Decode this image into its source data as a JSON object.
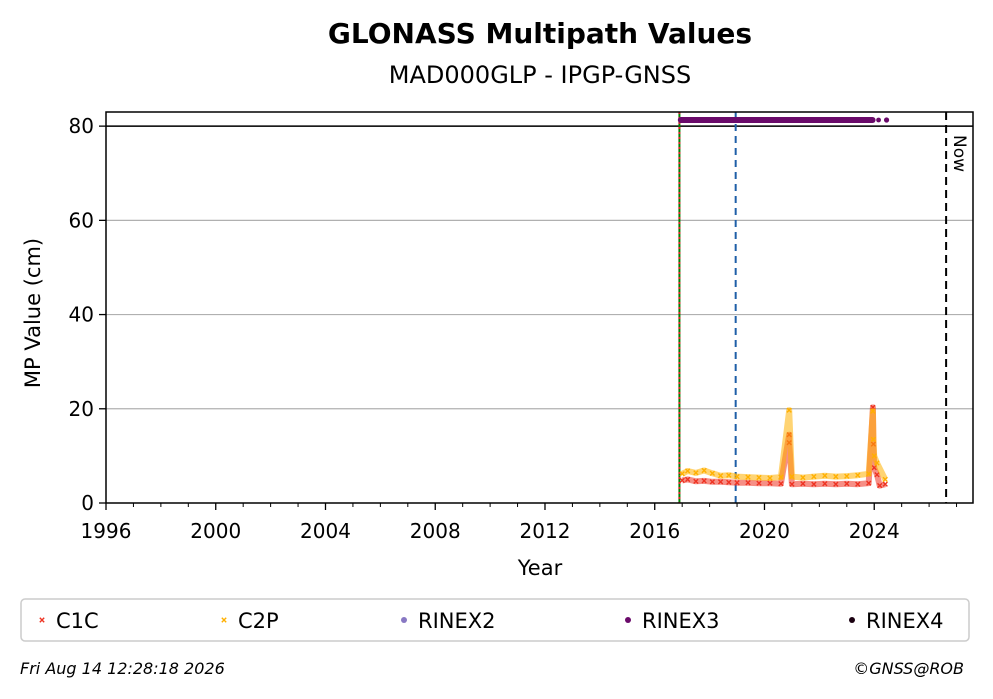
{
  "chart_data": {
    "type": "scatter",
    "title": "GLONASS Multipath Values",
    "subtitle": "MAD000GLP - IPGP-GNSS",
    "xlabel": "Year",
    "ylabel": "MP Value (cm)",
    "xlim": [
      1996,
      2027.6
    ],
    "ylim": [
      0,
      83
    ],
    "x_ticks": [
      "1996",
      "2000",
      "2004",
      "2008",
      "2012",
      "2016",
      "2020",
      "2024"
    ],
    "y_ticks": [
      "0",
      "20",
      "40",
      "60",
      "80"
    ],
    "grid": "horizontal",
    "reference_line_y": 80,
    "now_label": "Now",
    "now_year": 2026.62,
    "vertical_markers": [
      {
        "year": 2016.9,
        "color": "#008000",
        "style": "solid"
      },
      {
        "year": 2016.9,
        "color": "#d62728",
        "style": "dotted"
      },
      {
        "year": 2018.95,
        "color": "#1f5fa8",
        "style": "dashed"
      }
    ],
    "series": [
      {
        "name": "C1C",
        "color": "#ee3322",
        "marker": "x",
        "points": [
          [
            2017.0,
            4.8
          ],
          [
            2017.2,
            5.0
          ],
          [
            2017.5,
            4.6
          ],
          [
            2017.8,
            4.7
          ],
          [
            2018.1,
            4.5
          ],
          [
            2018.4,
            4.5
          ],
          [
            2018.7,
            4.4
          ],
          [
            2019.0,
            4.3
          ],
          [
            2019.4,
            4.3
          ],
          [
            2019.8,
            4.2
          ],
          [
            2020.2,
            4.2
          ],
          [
            2020.6,
            4.1
          ],
          [
            2020.9,
            14.5
          ],
          [
            2020.9,
            12.8
          ],
          [
            2021.0,
            4.0
          ],
          [
            2021.4,
            4.1
          ],
          [
            2021.8,
            4.0
          ],
          [
            2022.2,
            4.1
          ],
          [
            2022.6,
            4.0
          ],
          [
            2023.0,
            4.1
          ],
          [
            2023.4,
            4.0
          ],
          [
            2023.8,
            4.2
          ],
          [
            2023.95,
            20.3
          ],
          [
            2023.97,
            12.5
          ],
          [
            2024.0,
            7.5
          ],
          [
            2024.1,
            6.0
          ],
          [
            2024.2,
            3.7
          ],
          [
            2024.4,
            4.0
          ]
        ]
      },
      {
        "name": "C2P",
        "color": "#ffb000",
        "marker": "x",
        "points": [
          [
            2017.0,
            6.2
          ],
          [
            2017.2,
            6.8
          ],
          [
            2017.5,
            6.4
          ],
          [
            2017.8,
            6.9
          ],
          [
            2018.1,
            6.3
          ],
          [
            2018.4,
            5.8
          ],
          [
            2018.7,
            5.9
          ],
          [
            2019.0,
            5.6
          ],
          [
            2019.4,
            5.5
          ],
          [
            2019.8,
            5.4
          ],
          [
            2020.2,
            5.3
          ],
          [
            2020.6,
            5.5
          ],
          [
            2020.9,
            19.7
          ],
          [
            2021.0,
            5.6
          ],
          [
            2021.4,
            5.4
          ],
          [
            2021.8,
            5.6
          ],
          [
            2022.2,
            5.8
          ],
          [
            2022.6,
            5.6
          ],
          [
            2023.0,
            5.7
          ],
          [
            2023.4,
            5.9
          ],
          [
            2023.8,
            6.2
          ],
          [
            2023.95,
            19.5
          ],
          [
            2023.97,
            13.5
          ],
          [
            2024.0,
            10.0
          ],
          [
            2024.1,
            8.5
          ],
          [
            2024.4,
            5.0
          ]
        ]
      },
      {
        "name": "RINEX2",
        "color": "#8878c3",
        "marker": "dot",
        "points": []
      },
      {
        "name": "RINEX3",
        "color": "#6a0a6a",
        "marker": "dot",
        "points": [
          [
            2016.95,
            81.3
          ],
          [
            2024.45,
            81.3
          ]
        ]
      },
      {
        "name": "RINEX4",
        "color": "#1a0010",
        "marker": "dot",
        "points": []
      }
    ]
  },
  "footer": {
    "timestamp": "Fri Aug 14 12:28:18 2026",
    "credit": "©GNSS@ROB"
  }
}
